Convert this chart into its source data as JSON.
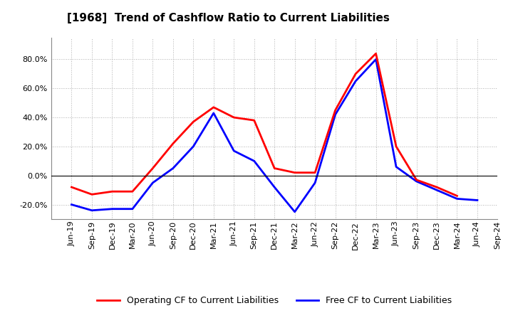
{
  "title": "[1968]  Trend of Cashflow Ratio to Current Liabilities",
  "x_labels": [
    "Jun-19",
    "Sep-19",
    "Dec-19",
    "Mar-20",
    "Jun-20",
    "Sep-20",
    "Dec-20",
    "Mar-21",
    "Jun-21",
    "Sep-21",
    "Dec-21",
    "Mar-22",
    "Jun-22",
    "Sep-22",
    "Dec-22",
    "Mar-23",
    "Jun-23",
    "Sep-23",
    "Dec-23",
    "Mar-24",
    "Jun-24",
    "Sep-24"
  ],
  "operating_cf": [
    -8.0,
    -13.0,
    -11.0,
    -11.0,
    5.0,
    22.0,
    37.0,
    47.0,
    40.0,
    38.0,
    5.0,
    2.0,
    2.0,
    45.0,
    70.0,
    84.0,
    20.0,
    -3.0,
    -8.0,
    -14.0,
    null,
    null
  ],
  "free_cf": [
    -20.0,
    -24.0,
    -23.0,
    -23.0,
    -5.0,
    5.0,
    20.0,
    43.0,
    17.0,
    10.0,
    -8.0,
    -25.0,
    -5.0,
    42.0,
    65.0,
    80.0,
    6.0,
    -4.0,
    -10.0,
    -16.0,
    -17.0,
    null
  ],
  "ylim": [
    -30,
    95
  ],
  "yticks": [
    -20.0,
    0.0,
    20.0,
    40.0,
    60.0,
    80.0
  ],
  "operating_color": "#ff0000",
  "free_color": "#0000ff",
  "background_color": "#ffffff",
  "plot_bg_color": "#ffffff",
  "grid_color": "#b0b0b0",
  "legend_op": "Operating CF to Current Liabilities",
  "legend_free": "Free CF to Current Liabilities",
  "linewidth": 2.0,
  "title_fontsize": 11,
  "tick_fontsize": 8
}
